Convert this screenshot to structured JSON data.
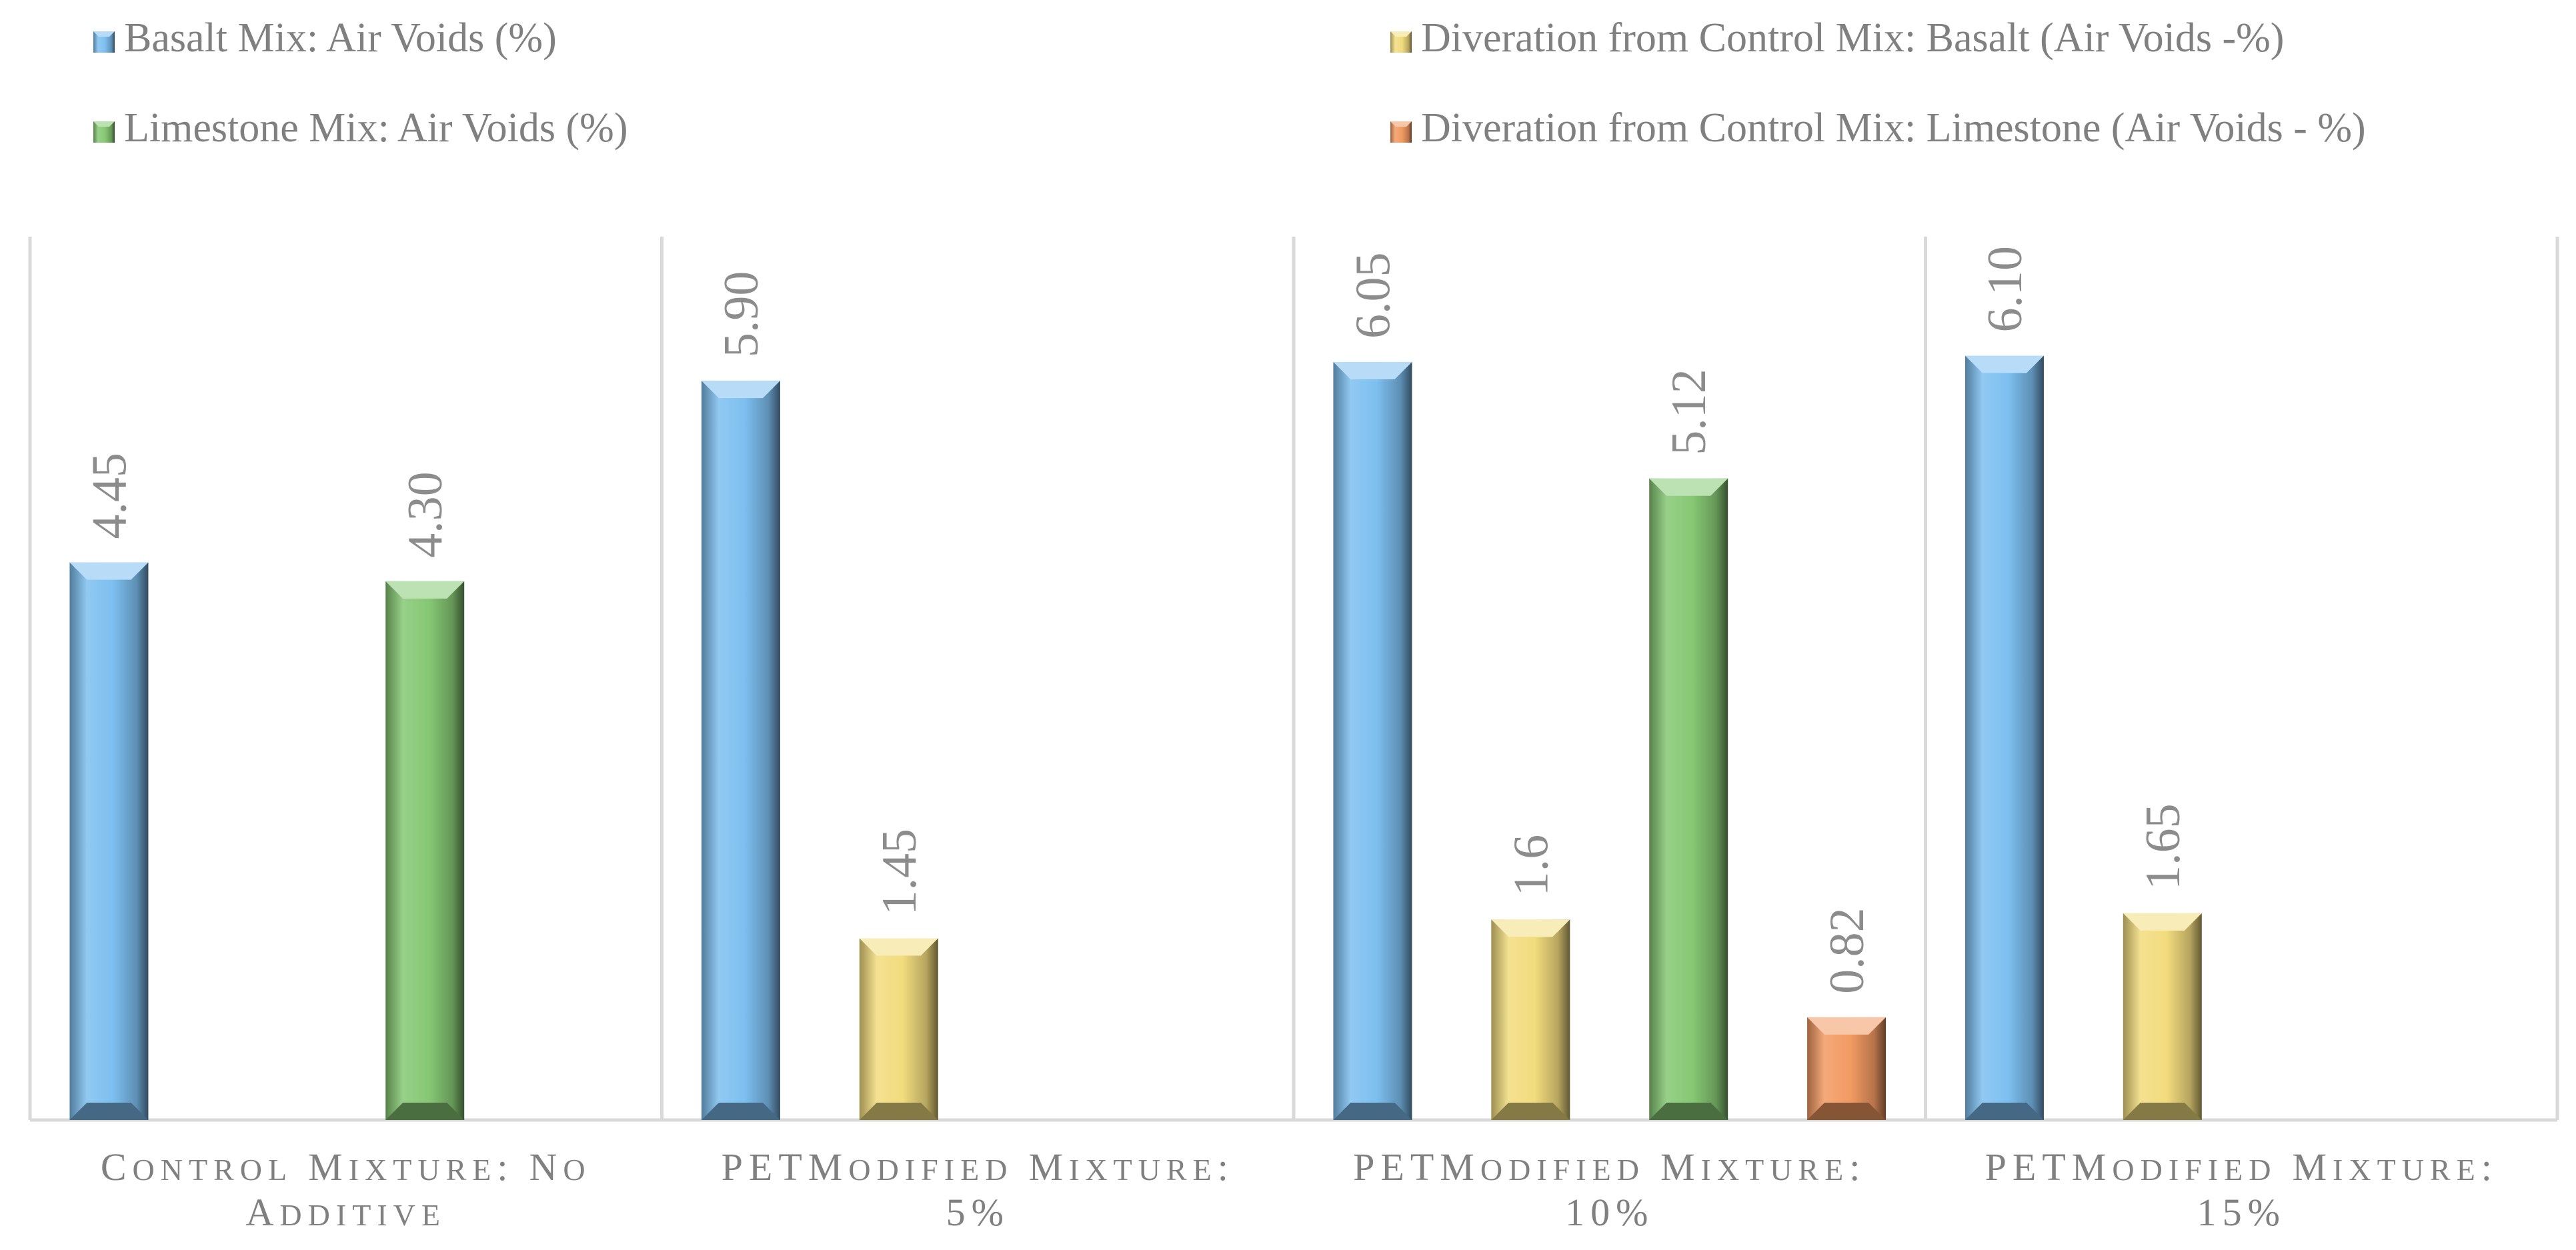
{
  "chart_data": {
    "type": "bar",
    "categories": [
      [
        "Control Mixture: No",
        "Additive"
      ],
      [
        "PET",
        "Modified Mixture:",
        "5%"
      ],
      [
        "PET",
        "Modified Mixture:",
        "10%"
      ],
      [
        "PET",
        "Modified Mixture:",
        "15%"
      ]
    ],
    "series": [
      {
        "name": "Basalt Mix: Air Voids (%)",
        "color": "#7dbff0",
        "values": [
          4.45,
          5.9,
          6.05,
          6.1
        ],
        "labels": [
          "4.45",
          "5.90",
          "6.05",
          "6.10"
        ]
      },
      {
        "name": "Diveration from Control Mix: Basalt (Air Voids -%)",
        "color": "#f2dc7e",
        "values": [
          null,
          1.45,
          1.6,
          1.65
        ],
        "labels": [
          null,
          "1.45",
          "1.6",
          "1.65"
        ]
      },
      {
        "name": "Limestone Mix: Air Voids (%)",
        "color": "#86c874",
        "values": [
          4.3,
          null,
          5.12,
          null
        ],
        "labels": [
          "4.30",
          null,
          "5.12",
          null
        ]
      },
      {
        "name": "Diveration from Control Mix: Limestone (Air Voids - %)",
        "color": "#f29a62",
        "values": [
          null,
          null,
          0.82,
          null
        ],
        "labels": [
          null,
          null,
          "0.82",
          null
        ]
      }
    ],
    "legend_order": [
      0,
      1,
      2,
      3
    ],
    "legend_position": "top",
    "value_labels": "rotated-above-bars",
    "ylim": [
      0,
      7.05
    ],
    "y_axis_visible": false,
    "grid": "vertical-category-separators"
  }
}
